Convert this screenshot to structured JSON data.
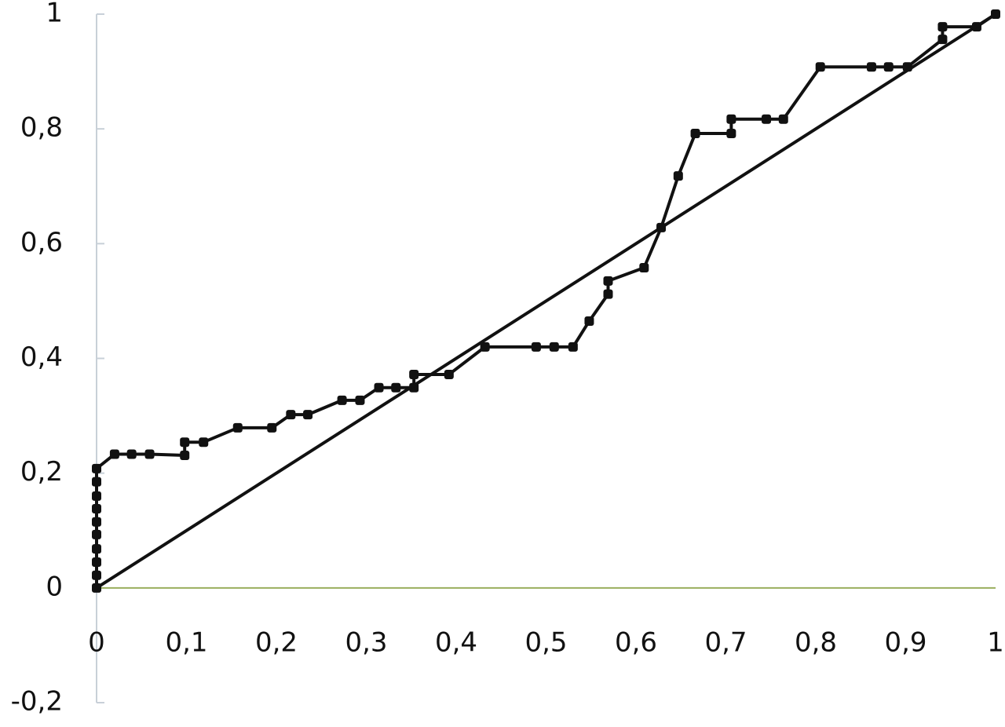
{
  "chart_data": {
    "type": "line",
    "xlim": [
      0,
      1
    ],
    "ylim": [
      -0.2,
      1
    ],
    "xticks": [
      {
        "value": 0,
        "label": "0"
      },
      {
        "value": 0.1,
        "label": "0,1"
      },
      {
        "value": 0.2,
        "label": "0,2"
      },
      {
        "value": 0.3,
        "label": "0,3"
      },
      {
        "value": 0.4,
        "label": "0,4"
      },
      {
        "value": 0.5,
        "label": "0,5"
      },
      {
        "value": 0.6,
        "label": "0,6"
      },
      {
        "value": 0.7,
        "label": "0,7"
      },
      {
        "value": 0.8,
        "label": "0,8"
      },
      {
        "value": 0.9,
        "label": "0,9"
      },
      {
        "value": 1,
        "label": "1"
      }
    ],
    "yticks": [
      {
        "value": -0.2,
        "label": "-0,2"
      },
      {
        "value": 0,
        "label": "0"
      },
      {
        "value": 0.2,
        "label": "0,2"
      },
      {
        "value": 0.4,
        "label": "0,4"
      },
      {
        "value": 0.6,
        "label": "0,6"
      },
      {
        "value": 0.8,
        "label": "0,8"
      },
      {
        "value": 1,
        "label": "1"
      }
    ],
    "grid": false,
    "series": [
      {
        "color": "#111111",
        "markers": true,
        "x": [
          0,
          0,
          0,
          0,
          0,
          0,
          0,
          0,
          0,
          0,
          0.02,
          0.039,
          0.059,
          0.098,
          0.098,
          0.119,
          0.157,
          0.195,
          0.216,
          0.235,
          0.273,
          0.293,
          0.314,
          0.333,
          0.353,
          0.353,
          0.392,
          0.432,
          0.489,
          0.509,
          0.53,
          0.548,
          0.569,
          0.569,
          0.609,
          0.628,
          0.647,
          0.666,
          0.706,
          0.706,
          0.745,
          0.764,
          0.805,
          0.862,
          0.881,
          0.902,
          0.941,
          0.941,
          0.979,
          1
        ],
        "values": [
          0,
          0.022,
          0.045,
          0.068,
          0.093,
          0.115,
          0.138,
          0.16,
          0.185,
          0.208,
          0.233,
          0.233,
          0.233,
          0.231,
          0.254,
          0.254,
          0.279,
          0.279,
          0.302,
          0.302,
          0.327,
          0.327,
          0.349,
          0.349,
          0.349,
          0.372,
          0.372,
          0.42,
          0.42,
          0.42,
          0.42,
          0.465,
          0.512,
          0.535,
          0.558,
          0.628,
          0.718,
          0.792,
          0.792,
          0.817,
          0.817,
          0.817,
          0.908,
          0.908,
          0.908,
          0.908,
          0.956,
          0.978,
          0.978,
          1
        ]
      },
      {
        "color": "#111111",
        "markers": false,
        "x": [
          0,
          1
        ],
        "values": [
          0,
          1
        ]
      }
    ]
  }
}
